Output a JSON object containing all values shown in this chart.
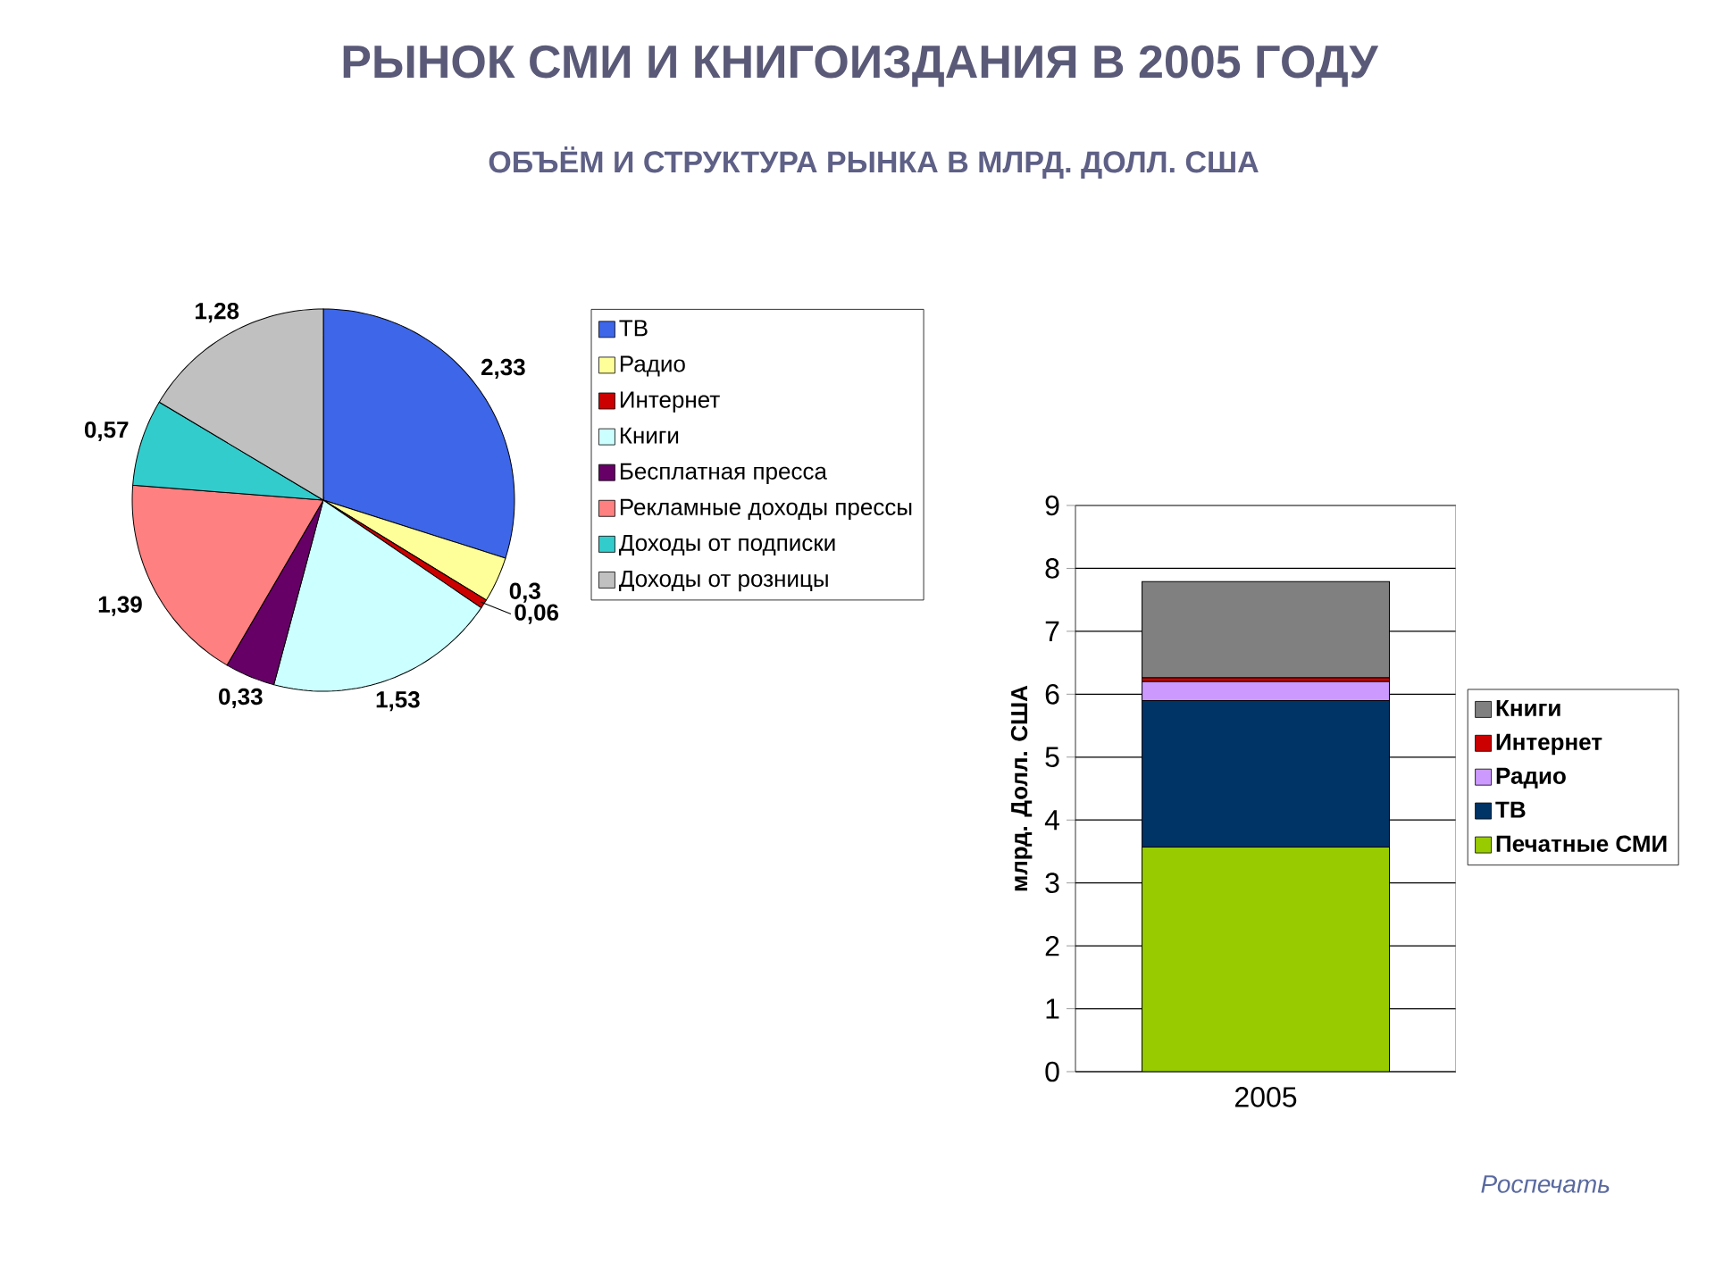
{
  "chart_data": [
    {
      "type": "pie",
      "title": "РЫНОК СМИ И КНИГОИЗДАНИЯ В 2005 ГОДУ",
      "subtitle": "ОБЪЁМ И СТРУКТУРА РЫНКА В МЛРД. ДОЛЛ. США",
      "categories": [
        "ТВ",
        "Радио",
        "Интернет",
        "Книги",
        "Бесплатная пресса",
        "Рекламные доходы прессы",
        "Доходы от подписки",
        "Доходы от розницы"
      ],
      "values": [
        2.33,
        0.3,
        0.06,
        1.53,
        0.33,
        1.39,
        0.57,
        1.28
      ],
      "colors": [
        "#3d66e8",
        "#ffff99",
        "#cc0000",
        "#ccffff",
        "#660066",
        "#ff8080",
        "#33cccc",
        "#c0c0c0"
      ],
      "value_labels": [
        "2,33",
        "0,3",
        "0,06",
        "1,53",
        "0,33",
        "1,39",
        "0,57",
        "1,28"
      ],
      "legend": "right"
    },
    {
      "type": "bar",
      "stacked": true,
      "categories": [
        "2005"
      ],
      "series": [
        {
          "name": "Печатные СМИ",
          "color": "#99cc00",
          "values": [
            3.57
          ]
        },
        {
          "name": "ТВ",
          "color": "#003366",
          "values": [
            2.33
          ]
        },
        {
          "name": "Радио",
          "color": "#cc99ff",
          "values": [
            0.3
          ]
        },
        {
          "name": "Интернет",
          "color": "#cc0000",
          "values": [
            0.06
          ]
        },
        {
          "name": "Книги",
          "color": "#808080",
          "values": [
            1.53
          ]
        }
      ],
      "ylabel": "млрд. Долл. США",
      "ylim": [
        0,
        9
      ],
      "yticks": [
        0,
        1,
        2,
        3,
        4,
        5,
        6,
        7,
        8,
        9
      ],
      "grid": "y",
      "legend": "right",
      "annotations": [
        "Роспечать"
      ]
    }
  ]
}
